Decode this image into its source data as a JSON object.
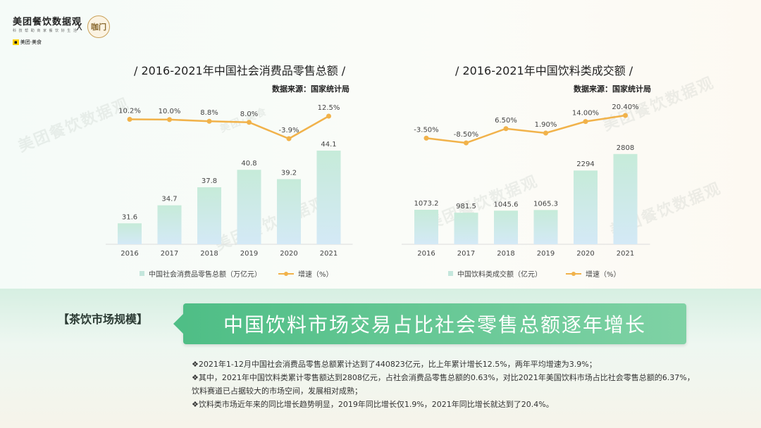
{
  "brand": {
    "title": "美团餐饮数据观",
    "subtitle": "科 技 帮 助 商 家 餐 饮 好 生 活",
    "meituan": "美团·美食",
    "x": "X",
    "partner": "咖门"
  },
  "watermark": {
    "text": "美团餐饮数据观",
    "sub": "美团·美食"
  },
  "colors": {
    "bar": "#c4e6dc",
    "line": "#f1b24a",
    "banner": "#4fbe86"
  },
  "chart_data": [
    {
      "type": "bar",
      "title": "/ 2016-2021年中国社会消费品零售总额 /",
      "source": "数据来源：国家统计局",
      "categories": [
        "2016",
        "2017",
        "2018",
        "2019",
        "2020",
        "2021"
      ],
      "series": [
        {
          "name": "中国社会消费品零售总额（万亿元）",
          "type": "bar",
          "values": [
            31.6,
            34.7,
            37.8,
            40.8,
            39.2,
            44.1
          ],
          "labels": [
            "31.6",
            "34.7",
            "37.8",
            "40.8",
            "39.2",
            "44.1"
          ]
        },
        {
          "name": "增速（%）",
          "type": "line",
          "values": [
            10.2,
            10.0,
            8.8,
            8.0,
            -3.9,
            12.5
          ],
          "labels": [
            "10.2%",
            "10.0%",
            "8.8%",
            "8.0%",
            "-3.9%",
            "12.5%"
          ]
        }
      ],
      "legend": [
        "中国社会消费品零售总额（万亿元）",
        "增速（%）"
      ],
      "ylim": [
        28,
        47
      ]
    },
    {
      "type": "bar",
      "title": "/ 2016-2021年中国饮料类成交额 /",
      "source": "数据来源：国家统计局",
      "categories": [
        "2016",
        "2017",
        "2018",
        "2019",
        "2020",
        "2021"
      ],
      "series": [
        {
          "name": "中国饮料类成交额（亿元）",
          "type": "bar",
          "values": [
            1073.2,
            981.5,
            1045.6,
            1065.3,
            2294,
            2808
          ],
          "labels": [
            "1073.2",
            "981.5",
            "1045.6",
            "1065.3",
            "2294",
            "2808"
          ]
        },
        {
          "name": "增速（%）",
          "type": "line",
          "values": [
            -3.5,
            -8.5,
            6.5,
            1.9,
            14.0,
            20.4
          ],
          "labels": [
            "-3.50%",
            "-8.50%",
            "6.50%",
            "1.90%",
            "14.00%",
            "20.40%"
          ]
        }
      ],
      "legend": [
        "中国饮料类成交额（亿元）",
        "增速（%）"
      ],
      "ylim": [
        0,
        3000
      ]
    }
  ],
  "section": {
    "tag": "【茶饮市场规模】",
    "headline": "中国饮料市场交易占比社会零售总额逐年增长",
    "bullets": [
      "❖2021年1-12月中国社会消费品零售总额累计达到了440823亿元，比上年累计增长12.5%，两年平均增速为3.9%；",
      "❖其中，2021年中国饮料类累计零售额达到2808亿元，占社会消费品零售总额的0.63%，对比2021年美国饮料市场占比社会零售总额的6.37%，",
      "饮料赛道已占据较大的市场空间，发展相对成熟；",
      "❖饮料类市场近年来的同比增长趋势明显，2019年同比增长仅1.9%，2021年同比增长就达到了20.4%。"
    ]
  }
}
